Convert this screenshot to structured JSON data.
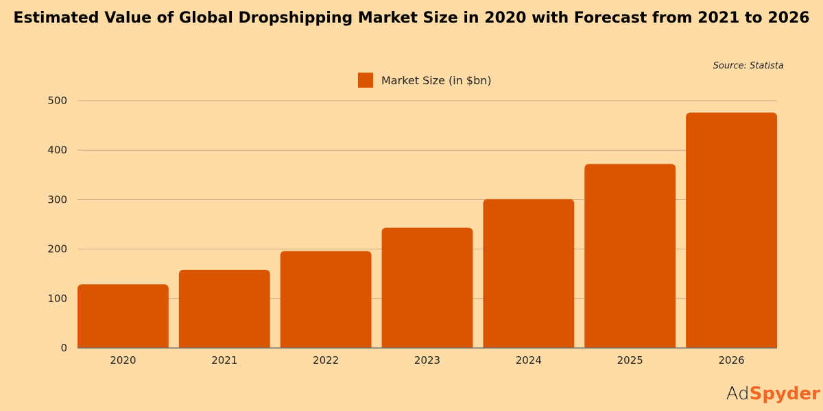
{
  "chart_data": {
    "type": "bar",
    "title": "Estimated Value of Global Dropshipping Market Size in 2020 with Forecast from 2021 to 2026",
    "source": "Source: Statista",
    "categories": [
      "2020",
      "2021",
      "2022",
      "2023",
      "2024",
      "2025",
      "2026"
    ],
    "series": [
      {
        "name": "Market Size (in $bn)",
        "values": [
          128.6,
          158,
          196,
          243,
          301,
          372,
          476
        ],
        "color": "#DB5500"
      }
    ],
    "yticks": [
      0,
      100,
      200,
      300,
      400,
      500
    ],
    "ylim": [
      0,
      500
    ],
    "grid": true,
    "legend": "top-center"
  },
  "logo": {
    "part1": "Ad",
    "part2": "Spyder"
  },
  "colors": {
    "background": "#FFDCA6",
    "bar": "#DB5500",
    "grid": "#C8A77A",
    "logo_accent": "#F26522"
  }
}
